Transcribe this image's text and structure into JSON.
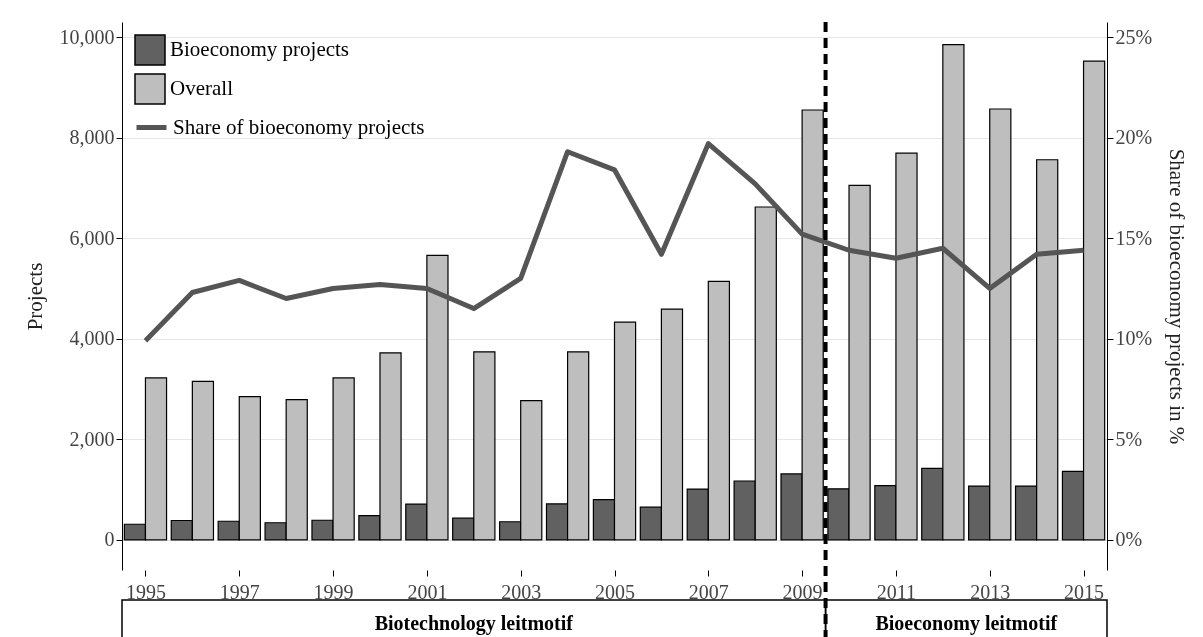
{
  "chart_data": {
    "type": "bar",
    "x": [
      1995,
      1996,
      1997,
      1998,
      1999,
      2000,
      2001,
      2002,
      2003,
      2004,
      2005,
      2006,
      2007,
      2008,
      2009,
      2010,
      2011,
      2012,
      2013,
      2014,
      2015
    ],
    "series": [
      {
        "name": "Bioeconomy projects",
        "color": "#616161",
        "values": [
          310,
          385,
          370,
          340,
          390,
          480,
          710,
          430,
          360,
          715,
          800,
          650,
          1010,
          1170,
          1310,
          1015,
          1080,
          1420,
          1070,
          1070,
          1360
        ]
      },
      {
        "name": "Overall",
        "color": "#bebebe",
        "values": [
          3220,
          3150,
          2850,
          2790,
          3220,
          3720,
          5660,
          3740,
          2770,
          3740,
          4330,
          4590,
          5140,
          6620,
          8550,
          7050,
          7690,
          9850,
          8570,
          7560,
          9520
        ]
      },
      {
        "name": "Share of bioeconomy projects",
        "type": "line",
        "axis": "y2",
        "color": "#555555",
        "values": [
          9.9,
          12.3,
          12.9,
          12.0,
          12.5,
          12.7,
          12.5,
          11.5,
          13.0,
          19.3,
          18.4,
          14.2,
          19.7,
          17.7,
          15.2,
          14.4,
          14.0,
          14.5,
          12.5,
          14.2,
          14.4
        ]
      }
    ],
    "ylabel": "Projects",
    "y2label": "Share of bioeconomy projects in %",
    "xlim": [
      1994.5,
      2015.5
    ],
    "xticks": [
      1995,
      1997,
      1999,
      2001,
      2003,
      2005,
      2007,
      2009,
      2011,
      2013,
      2015
    ],
    "ylim": [
      -600,
      10300
    ],
    "yticks": [
      0,
      {
        "value": 2000,
        "label": "2,000"
      },
      {
        "value": 4000,
        "label": "4,000"
      },
      {
        "value": 6000,
        "label": "6,000"
      },
      {
        "value": 8000,
        "label": "8,000"
      },
      {
        "value": 10000,
        "label": "10,000"
      }
    ],
    "y2lim": [
      -1.5,
      25.75
    ],
    "y2ticks": [
      {
        "value": 0,
        "label": "0%"
      },
      {
        "value": 5,
        "label": "5%"
      },
      {
        "value": 10,
        "label": "10%"
      },
      {
        "value": 15,
        "label": "15%"
      },
      {
        "value": 20,
        "label": "20%"
      },
      {
        "value": 25,
        "label": "25%"
      }
    ],
    "ref_lines": [
      {
        "axis": "x",
        "value": 2009.5,
        "color": "#000000",
        "line_style": "dashed"
      }
    ],
    "annotations": [
      "Biotechnology leitmotif",
      "Bioeconomy leitmotif"
    ],
    "grid": "y",
    "legend": "top left"
  }
}
